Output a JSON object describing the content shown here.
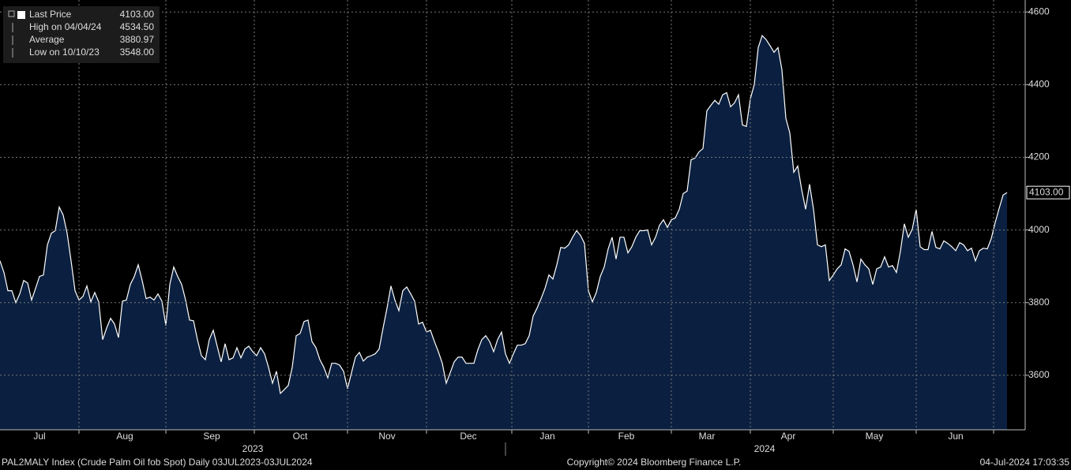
{
  "chart_data": {
    "type": "area",
    "legend": [
      {
        "label": "Last Price",
        "value": "4103.00"
      },
      {
        "label": "High on 04/04/24",
        "value": "4534.50"
      },
      {
        "label": "Average",
        "value": "3880.97"
      },
      {
        "label": "Low on 10/10/23",
        "value": "3548.00"
      }
    ],
    "series": [
      {
        "name": "Last Price",
        "color": "#ffffff",
        "fill": "#0b2040",
        "values": [
          3915,
          3883,
          3833,
          3833,
          3800,
          3824,
          3861,
          3854,
          3807,
          3839,
          3872,
          3876,
          3959,
          3991,
          3998,
          4063,
          4041,
          3991,
          3915,
          3833,
          3807,
          3817,
          3846,
          3802,
          3828,
          3802,
          3698,
          3730,
          3757,
          3741,
          3704,
          3804,
          3807,
          3850,
          3872,
          3904,
          3861,
          3811,
          3815,
          3807,
          3824,
          3804,
          3737,
          3850,
          3898,
          3872,
          3850,
          3807,
          3752,
          3750,
          3698,
          3654,
          3643,
          3698,
          3724,
          3680,
          3637,
          3687,
          3643,
          3648,
          3676,
          3648,
          3672,
          3680,
          3665,
          3654,
          3676,
          3659,
          3622,
          3578,
          3611,
          3550,
          3561,
          3572,
          3622,
          3709,
          3715,
          3748,
          3752,
          3693,
          3676,
          3643,
          3622,
          3593,
          3633,
          3633,
          3628,
          3611,
          3563,
          3607,
          3650,
          3663,
          3639,
          3650,
          3654,
          3659,
          3672,
          3730,
          3785,
          3846,
          3807,
          3778,
          3833,
          3843,
          3824,
          3804,
          3741,
          3746,
          3719,
          3724,
          3693,
          3665,
          3633,
          3578,
          3607,
          3637,
          3650,
          3650,
          3633,
          3633,
          3633,
          3670,
          3698,
          3709,
          3693,
          3665,
          3698,
          3719,
          3659,
          3633,
          3659,
          3683,
          3683,
          3687,
          3709,
          3763,
          3785,
          3811,
          3839,
          3876,
          3865,
          3904,
          3952,
          3950,
          3959,
          3980,
          3998,
          3985,
          3963,
          3833,
          3802,
          3828,
          3872,
          3898,
          3948,
          3980,
          3920,
          3980,
          3980,
          3937,
          3954,
          3980,
          3998,
          3998,
          4000,
          3959,
          3980,
          4013,
          4028,
          4007,
          4028,
          4033,
          4057,
          4100,
          4107,
          4193,
          4198,
          4215,
          4224,
          4328,
          4343,
          4357,
          4346,
          4372,
          4378,
          4339,
          4350,
          4372,
          4289,
          4285,
          4361,
          4400,
          4502,
          4535,
          4524,
          4507,
          4489,
          4502,
          4441,
          4307,
          4267,
          4159,
          4176,
          4111,
          4057,
          4126,
          4057,
          3959,
          3954,
          3959,
          3861,
          3876,
          3893,
          3904,
          3948,
          3941,
          3904,
          3857,
          3920,
          3904,
          3893,
          3850,
          3893,
          3898,
          3926,
          3898,
          3902,
          3883,
          3941,
          4017,
          3980,
          4002,
          4057,
          3954,
          3946,
          3946,
          3996,
          3952,
          3948,
          3970,
          3963,
          3954,
          3943,
          3965,
          3959,
          3943,
          3950,
          3915,
          3943,
          3950,
          3948,
          3976,
          4020,
          4059,
          4096,
          4103
        ]
      }
    ],
    "last_label": "4103.00",
    "xlim": [
      0,
      259.6
    ],
    "xticks": [
      {
        "value": 10,
        "label": "Jul"
      },
      {
        "value": 31.6,
        "label": "Aug"
      },
      {
        "value": 53.6,
        "label": "Sep"
      },
      {
        "value": 76,
        "label": "Oct"
      },
      {
        "value": 98,
        "label": "Nov"
      },
      {
        "value": 118.6,
        "label": "Dec"
      },
      {
        "value": 138.6,
        "label": "Jan"
      },
      {
        "value": 158.6,
        "label": "Feb"
      },
      {
        "value": 179,
        "label": "Mar"
      },
      {
        "value": 199.6,
        "label": "Apr"
      },
      {
        "value": 221.4,
        "label": "May"
      },
      {
        "value": 242,
        "label": "Jun"
      }
    ],
    "xgrid": [
      20,
      42,
      64.4,
      88,
      108,
      129.6,
      149,
      170,
      190,
      211,
      232,
      251.6
    ],
    "year_labels": [
      {
        "value": 64,
        "label": "2023"
      },
      {
        "value": 193.6,
        "label": "2024"
      }
    ],
    "year_separator": 128,
    "ylim": [
      3450,
      4633
    ],
    "yticks": [
      3600,
      3800,
      4000,
      4200,
      4400,
      4600
    ],
    "grid": true,
    "footer": {
      "left": "PAL2MALY Index (Crude Palm Oil fob Spot)  Daily 03JUL2023-03JUL2024",
      "center": "Copyright© 2024 Bloomberg Finance L.P.",
      "right": "04-Jul-2024 17:03:35"
    }
  }
}
